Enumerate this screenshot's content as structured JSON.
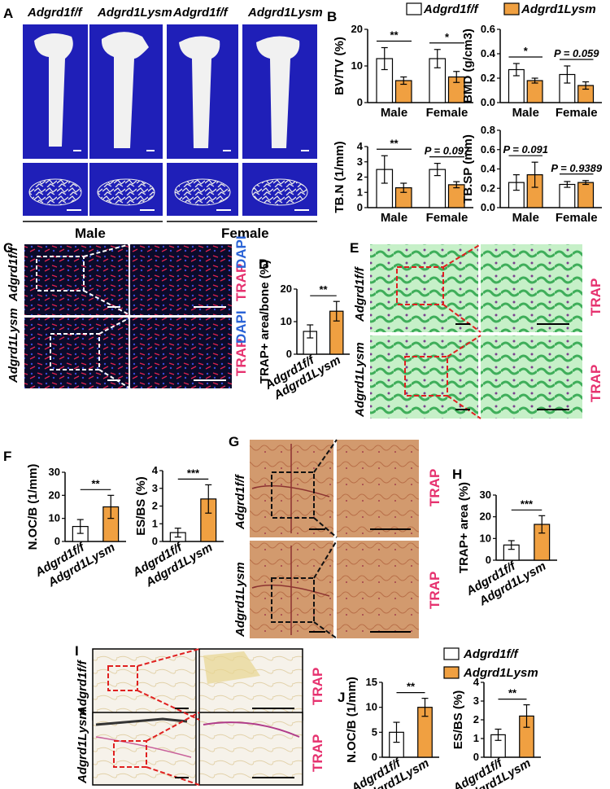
{
  "genotype_ff": "Adgrd1f/f",
  "genotype_lysm": "Adgrd1Lysm",
  "sex": {
    "male": "Male",
    "female": "Female"
  },
  "stain": {
    "trap": "TRAP",
    "dapi": "DAPI"
  },
  "panels": {
    "A": "A",
    "B": "B",
    "C": "C",
    "D": "D",
    "E": "E",
    "F": "F",
    "G": "G",
    "H": "H",
    "I": "I",
    "J": "J"
  },
  "colors": {
    "ff_bar": "#ffffff",
    "lysm_bar": "#f0a041",
    "scan_bg": "#1f1fb8",
    "trap_label": "#e6326f",
    "dapi_label": "#2a63d6",
    "dashed_red": "#e02020"
  },
  "chart_data": [
    {
      "panel": "B",
      "type": "bar",
      "ylabel": "BV/TV (%)",
      "ylim": [
        0,
        20
      ],
      "yticks": [
        0,
        10,
        20
      ],
      "categories": [
        "Male",
        "Female"
      ],
      "series": [
        {
          "name": "Adgrd1f/f",
          "values": [
            12,
            12
          ],
          "errors": [
            3,
            2.5
          ]
        },
        {
          "name": "Adgrd1Lysm",
          "values": [
            6,
            7
          ],
          "errors": [
            1,
            1.5
          ]
        }
      ],
      "significance": [
        {
          "group": "Male",
          "label": "**"
        },
        {
          "group": "Female",
          "label": "*"
        }
      ]
    },
    {
      "panel": "B",
      "type": "bar",
      "ylabel": "BMD (g/cm3)",
      "ylim": [
        0,
        0.6
      ],
      "yticks": [
        0.0,
        0.2,
        0.4,
        0.6
      ],
      "categories": [
        "Male",
        "Female"
      ],
      "series": [
        {
          "name": "Adgrd1f/f",
          "values": [
            0.27,
            0.23
          ],
          "errors": [
            0.05,
            0.07
          ]
        },
        {
          "name": "Adgrd1Lysm",
          "values": [
            0.18,
            0.14
          ],
          "errors": [
            0.02,
            0.03
          ]
        }
      ],
      "significance": [
        {
          "group": "Male",
          "label": "*"
        },
        {
          "group": "Female",
          "label": "P = 0.059"
        }
      ]
    },
    {
      "panel": "B",
      "type": "bar",
      "ylabel": "TB.N (1/mm)",
      "ylim": [
        0,
        4
      ],
      "yticks": [
        0,
        1,
        2,
        3,
        4
      ],
      "categories": [
        "Male",
        "Female"
      ],
      "series": [
        {
          "name": "Adgrd1f/f",
          "values": [
            2.5,
            2.5
          ],
          "errors": [
            0.9,
            0.4
          ]
        },
        {
          "name": "Adgrd1Lysm",
          "values": [
            1.3,
            1.5
          ],
          "errors": [
            0.3,
            0.2
          ]
        }
      ],
      "significance": [
        {
          "group": "Male",
          "label": "**"
        },
        {
          "group": "Female",
          "label": "P = 0.097"
        }
      ]
    },
    {
      "panel": "B",
      "type": "bar",
      "ylabel": "TB.SP (mm)",
      "ylim": [
        0,
        0.8
      ],
      "yticks": [
        0.0,
        0.2,
        0.4,
        0.6,
        0.8
      ],
      "categories": [
        "Male",
        "Female"
      ],
      "series": [
        {
          "name": "Adgrd1f/f",
          "values": [
            0.26,
            0.24
          ],
          "errors": [
            0.08,
            0.03
          ]
        },
        {
          "name": "Adgrd1Lysm",
          "values": [
            0.34,
            0.26
          ],
          "errors": [
            0.13,
            0.02
          ]
        }
      ],
      "significance": [
        {
          "group": "Male",
          "label": "P = 0.091"
        },
        {
          "group": "Female",
          "label": "P = 0.9389"
        }
      ]
    },
    {
      "panel": "D",
      "type": "bar",
      "ylabel": "TRAP+ area/bone (%)",
      "ylim": [
        0,
        20
      ],
      "yticks": [
        0,
        10,
        20
      ],
      "categories": [
        "Adgrd1f/f",
        "Adgrd1Lysm"
      ],
      "values": [
        7,
        13.2
      ],
      "errors": [
        2,
        3
      ],
      "significance": [
        {
          "label": "**"
        }
      ]
    },
    {
      "panel": "F",
      "type": "bar",
      "ylabel": "N.OC/B (1/mm)",
      "ylim": [
        0,
        30
      ],
      "yticks": [
        0,
        10,
        20,
        30
      ],
      "categories": [
        "Adgrd1f/f",
        "Adgrd1Lysm"
      ],
      "values": [
        6.5,
        15
      ],
      "errors": [
        3,
        5
      ],
      "significance": [
        {
          "label": "**"
        }
      ]
    },
    {
      "panel": "F",
      "type": "bar",
      "ylabel": "ES/BS (%)",
      "ylim": [
        0,
        4
      ],
      "yticks": [
        0,
        1,
        2,
        3,
        4
      ],
      "categories": [
        "Adgrd1f/f",
        "Adgrd1Lysm"
      ],
      "values": [
        0.5,
        2.4
      ],
      "errors": [
        0.25,
        0.8
      ],
      "significance": [
        {
          "label": "***"
        }
      ]
    },
    {
      "panel": "H",
      "type": "bar",
      "ylabel": "TRAP+ area (%)",
      "ylim": [
        0,
        30
      ],
      "yticks": [
        0,
        10,
        20,
        30
      ],
      "categories": [
        "Adgrd1f/f",
        "Adgrd1Lysm"
      ],
      "values": [
        7,
        16.5
      ],
      "errors": [
        2,
        4
      ],
      "significance": [
        {
          "label": "***"
        }
      ]
    },
    {
      "panel": "J",
      "type": "bar",
      "ylabel": "N.OC/B (1/mm)",
      "ylim": [
        0,
        15
      ],
      "yticks": [
        0,
        5,
        10,
        15
      ],
      "categories": [
        "Adgrd1f/f",
        "Adgrd1Lysm"
      ],
      "values": [
        5,
        10
      ],
      "errors": [
        2,
        1.8
      ],
      "significance": [
        {
          "label": "**"
        }
      ]
    },
    {
      "panel": "J",
      "type": "bar",
      "ylabel": "ES/BS (%)",
      "ylim": [
        0,
        4
      ],
      "yticks": [
        0,
        1,
        2,
        3,
        4
      ],
      "categories": [
        "Adgrd1f/f",
        "Adgrd1Lysm"
      ],
      "values": [
        1.2,
        2.2
      ],
      "errors": [
        0.3,
        0.6
      ],
      "significance": [
        {
          "label": "**"
        }
      ]
    }
  ]
}
